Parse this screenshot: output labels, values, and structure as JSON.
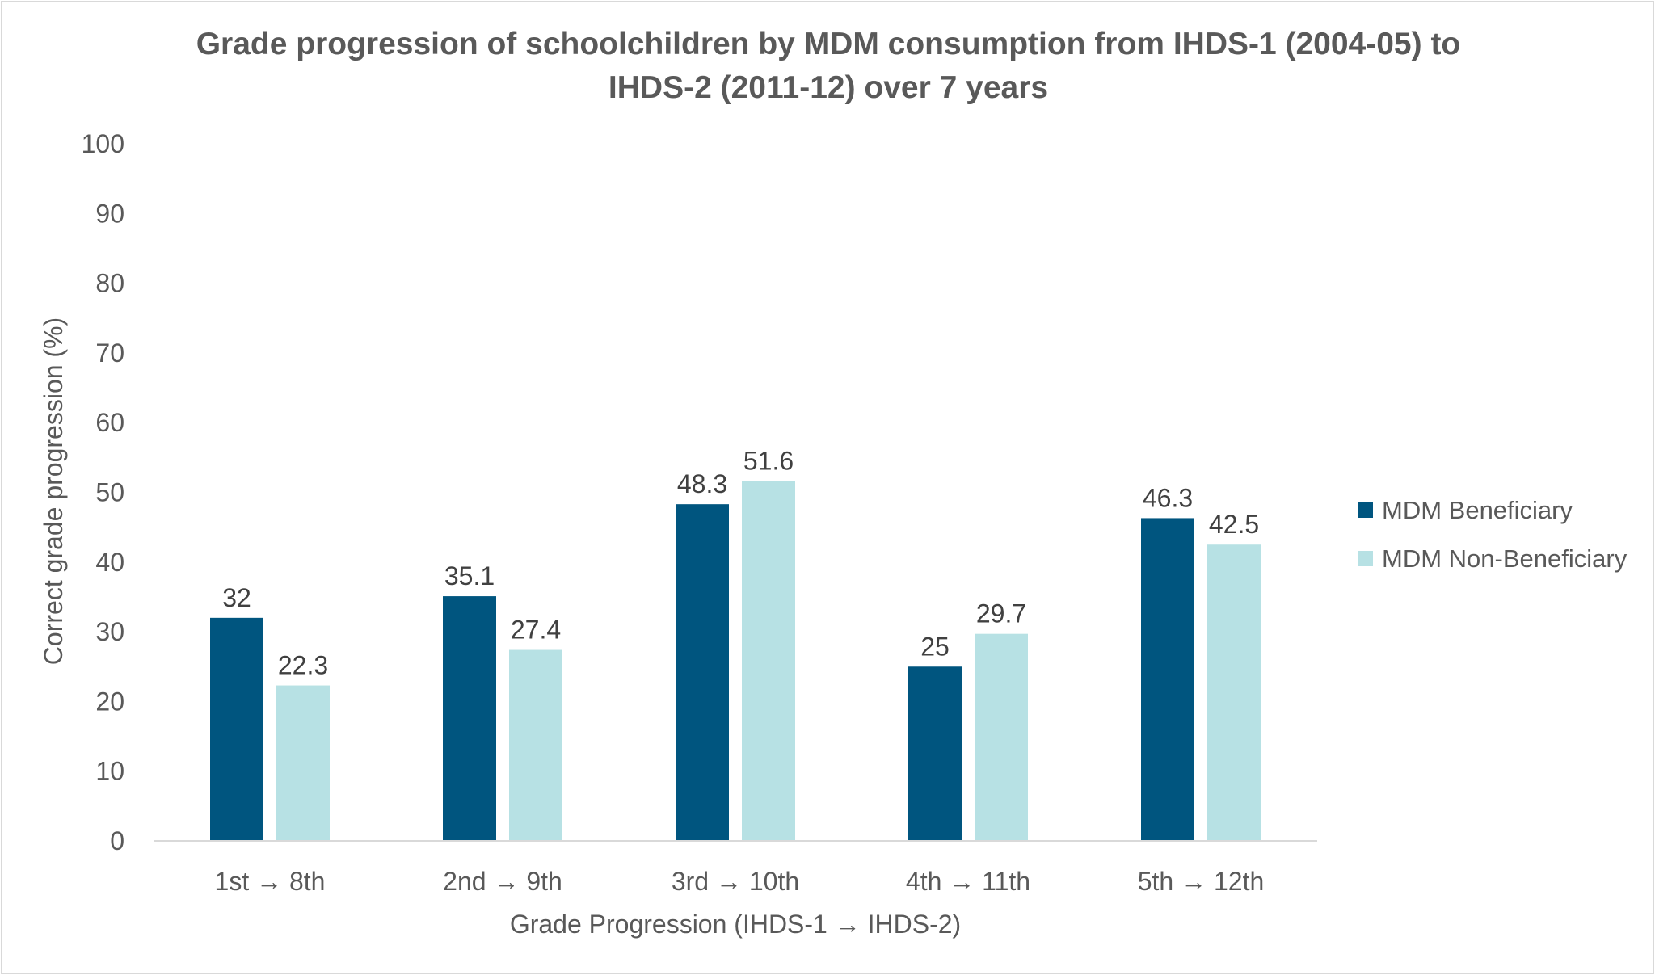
{
  "chart_data": {
    "type": "bar",
    "title_lines": [
      "Grade progression of schoolchildren by MDM consumption from IHDS-1 (2004-05) to",
      "IHDS-2 (2011-12) over 7 years"
    ],
    "xlabel": "Grade Progression (IHDS-1 → IHDS-2)",
    "ylabel": "Correct grade progression (%)",
    "categories": [
      "1st → 8th",
      "2nd → 9th",
      "3rd → 10th",
      "4th → 11th",
      "5th → 12th"
    ],
    "series": [
      {
        "name": "MDM Beneficiary",
        "color": "#00557f",
        "values": [
          32,
          35.1,
          48.3,
          25,
          46.3
        ]
      },
      {
        "name": "MDM Non-Beneficiary",
        "color": "#b7e1e4",
        "values": [
          22.3,
          27.4,
          51.6,
          29.7,
          42.5
        ]
      }
    ],
    "ylim": [
      0,
      100
    ],
    "yticks": [
      0,
      10,
      20,
      30,
      40,
      50,
      60,
      70,
      80,
      90,
      100
    ],
    "grid": false,
    "legend_position": "right",
    "data_labels": true
  }
}
